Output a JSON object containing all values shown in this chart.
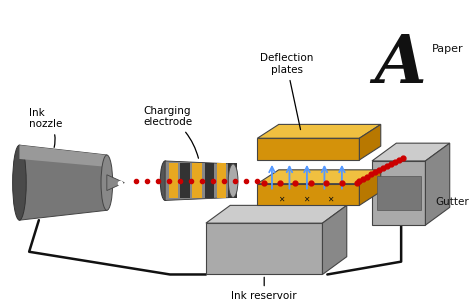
{
  "bg_color": "#ffffff",
  "label_ink_nozzle": "Ink\nnozzle",
  "label_charging": "Charging\nelectrode",
  "label_deflection": "Deflection\nplates",
  "label_paper": "Paper",
  "label_gutter": "Gutter",
  "label_reservoir": "Ink reservoir",
  "dot_color": "#cc0000",
  "blue_arrow_color": "#5599ff",
  "electrode_gold": "#e8a820",
  "electrode_dark": "#555555",
  "deflection_gold_face": "#d4920a",
  "deflection_gold_top": "#f0c040",
  "deflection_gold_side": "#b87800",
  "gutter_face": "#aaaaaa",
  "gutter_top": "#cccccc",
  "gutter_side": "#888888",
  "reservoir_face": "#aaaaaa",
  "reservoir_top": "#cccccc",
  "reservoir_side": "#888888",
  "nozzle_dark": "#555555",
  "nozzle_mid": "#777777",
  "nozzle_light": "#999999",
  "wire_color": "#111111"
}
